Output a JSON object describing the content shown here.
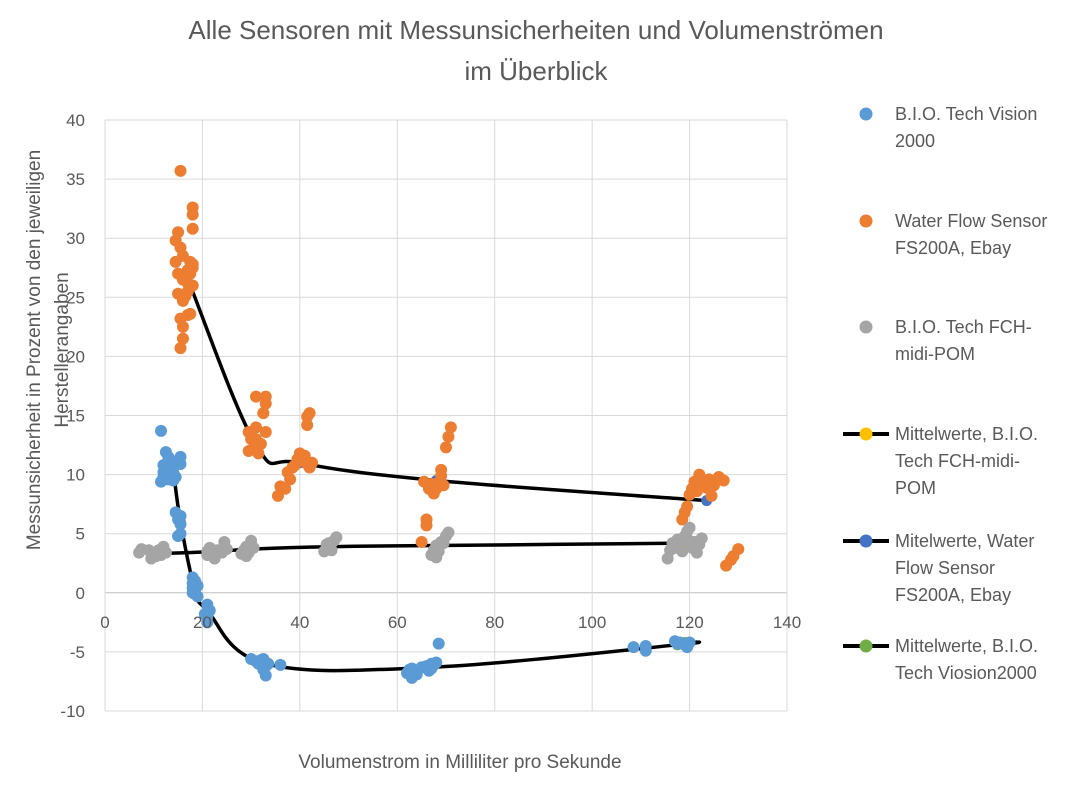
{
  "chart_data": {
    "type": "scatter",
    "title": [
      "Alle Sensoren mit Messunsicherheiten und Volumenströmen",
      "im Überblick"
    ],
    "xlabel": "Volumenstrom in Milliliter pro Sekunde",
    "ylabel": [
      "Messunsicherheit in Prozent von den jeweiligen",
      "Herstellerangaben"
    ],
    "xlim": [
      0,
      140
    ],
    "ylim": [
      -10,
      40
    ],
    "x_ticks": [
      0,
      20,
      40,
      60,
      80,
      100,
      120,
      140
    ],
    "y_ticks": [
      -10,
      -5,
      0,
      5,
      10,
      15,
      20,
      25,
      30,
      35,
      40
    ],
    "grid": true,
    "legend_position": "right",
    "series": [
      {
        "name": [
          "B.I.O. Tech Vision",
          "2000"
        ],
        "kind": "points",
        "color": "#5B9BD5",
        "points": [
          [
            11.5,
            13.7
          ],
          [
            12,
            10.8
          ],
          [
            12.5,
            11.9
          ],
          [
            12,
            10.2
          ],
          [
            11.5,
            9.4
          ],
          [
            12.5,
            10
          ],
          [
            13,
            11.5
          ],
          [
            13.5,
            10.5
          ],
          [
            14,
            11
          ],
          [
            14,
            9.5
          ],
          [
            14.5,
            9.8
          ],
          [
            15,
            11.2
          ],
          [
            15.5,
            10.9
          ],
          [
            15.5,
            11.5
          ],
          [
            14,
            10.2
          ],
          [
            13,
            9.6
          ],
          [
            12,
            9.8
          ],
          [
            12.5,
            10.6
          ],
          [
            14.5,
            6.8
          ],
          [
            15,
            6.2
          ],
          [
            15.5,
            5.8
          ],
          [
            15.5,
            5
          ],
          [
            15,
            4.8
          ],
          [
            15.5,
            6.5
          ],
          [
            18,
            1.3
          ],
          [
            18,
            0.8
          ],
          [
            18.5,
            0.3
          ],
          [
            18,
            0
          ],
          [
            18.5,
            1
          ],
          [
            19,
            -0.3
          ],
          [
            18.5,
            -0.1
          ],
          [
            19,
            0.6
          ],
          [
            18,
            0.4
          ],
          [
            21,
            -1
          ],
          [
            21.5,
            -1.5
          ],
          [
            21,
            -2
          ],
          [
            21,
            -2.5
          ],
          [
            20.5,
            -1.8
          ],
          [
            30,
            -5.6
          ],
          [
            31,
            -5.8
          ],
          [
            32,
            -5.7
          ],
          [
            33,
            -6.2
          ],
          [
            32.5,
            -6.5
          ],
          [
            33,
            -7
          ],
          [
            31.5,
            -6
          ],
          [
            32.5,
            -5.6
          ],
          [
            36,
            -6.1
          ],
          [
            33.5,
            -6
          ],
          [
            62,
            -6.8
          ],
          [
            62.5,
            -6.5
          ],
          [
            63,
            -7.2
          ],
          [
            63,
            -6.4
          ],
          [
            64,
            -6.9
          ],
          [
            65,
            -6.3
          ],
          [
            66,
            -6.2
          ],
          [
            66.5,
            -6.6
          ],
          [
            67,
            -6.4
          ],
          [
            67.5,
            -6.1
          ],
          [
            68,
            -5.9
          ],
          [
            68.5,
            -4.3
          ],
          [
            67,
            -6
          ],
          [
            108.5,
            -4.6
          ],
          [
            111,
            -4.5
          ],
          [
            111,
            -4.9
          ],
          [
            117,
            -4.1
          ],
          [
            117.5,
            -4.3
          ],
          [
            119,
            -4.4
          ],
          [
            120,
            -4.2
          ],
          [
            119.5,
            -4.6
          ],
          [
            118,
            -4.2
          ]
        ]
      },
      {
        "name": [
          "Water Flow Sensor",
          "FS200A, Ebay"
        ],
        "kind": "points",
        "color": "#ED7D31",
        "points": [
          [
            15.5,
            35.7
          ],
          [
            18,
            32.6
          ],
          [
            18,
            32
          ],
          [
            18,
            30.8
          ],
          [
            15,
            30.5
          ],
          [
            14.5,
            29.8
          ],
          [
            15.5,
            29.2
          ],
          [
            16,
            28.5
          ],
          [
            14.5,
            28
          ],
          [
            17.5,
            28
          ],
          [
            18,
            27.8
          ],
          [
            17,
            27.3
          ],
          [
            18,
            27.5
          ],
          [
            15,
            27
          ],
          [
            16,
            26.5
          ],
          [
            17,
            26.2
          ],
          [
            18,
            26
          ],
          [
            17,
            25.5
          ],
          [
            15,
            25.3
          ],
          [
            16.5,
            25.1
          ],
          [
            16,
            24.7
          ],
          [
            15.5,
            23.2
          ],
          [
            16,
            22.5
          ],
          [
            16,
            21.5
          ],
          [
            15.5,
            20.7
          ],
          [
            17.5,
            23.6
          ],
          [
            17,
            23.5
          ],
          [
            17.5,
            27
          ],
          [
            31,
            16.6
          ],
          [
            33,
            16.6
          ],
          [
            32.5,
            15.2
          ],
          [
            33,
            16
          ],
          [
            29.5,
            13.6
          ],
          [
            30,
            13
          ],
          [
            31,
            13
          ],
          [
            32,
            12.6
          ],
          [
            30.5,
            12.2
          ],
          [
            29.5,
            12
          ],
          [
            31,
            14
          ],
          [
            33,
            13.6
          ],
          [
            31.5,
            11.8
          ],
          [
            35.5,
            8.2
          ],
          [
            36,
            9
          ],
          [
            37,
            8.8
          ],
          [
            37.5,
            10.2
          ],
          [
            38,
            9.6
          ],
          [
            38.5,
            10.6
          ],
          [
            39,
            10.8
          ],
          [
            39.5,
            11.3
          ],
          [
            40,
            11.8
          ],
          [
            40.5,
            11.2
          ],
          [
            41,
            11.6
          ],
          [
            41.5,
            10.9
          ],
          [
            42,
            10.6
          ],
          [
            42.5,
            11
          ],
          [
            41.5,
            14.2
          ],
          [
            41.5,
            14.9
          ],
          [
            42,
            15.2
          ],
          [
            65,
            4.3
          ],
          [
            66,
            5.7
          ],
          [
            66,
            6.2
          ],
          [
            66.5,
            8.8
          ],
          [
            67,
            9.2
          ],
          [
            67.5,
            8.4
          ],
          [
            68,
            8.8
          ],
          [
            68.5,
            9.3
          ],
          [
            69,
            9.9
          ],
          [
            69,
            10.4
          ],
          [
            69.5,
            9.1
          ],
          [
            70,
            12.3
          ],
          [
            70.5,
            13.2
          ],
          [
            71,
            14
          ],
          [
            65.5,
            9.4
          ],
          [
            118.5,
            6.2
          ],
          [
            119,
            6.8
          ],
          [
            119.5,
            7.3
          ],
          [
            120,
            8.3
          ],
          [
            120.5,
            8.8
          ],
          [
            121,
            9.4
          ],
          [
            121.5,
            8.6
          ],
          [
            122,
            10
          ],
          [
            122.5,
            9.5
          ],
          [
            123,
            9.1
          ],
          [
            123.5,
            8.9
          ],
          [
            124,
            9.6
          ],
          [
            125,
            9.1
          ],
          [
            126,
            9.8
          ],
          [
            127,
            9.5
          ],
          [
            127.5,
            2.3
          ],
          [
            128.5,
            2.8
          ],
          [
            129,
            3.1
          ],
          [
            130,
            3.7
          ],
          [
            124.5,
            8.2
          ]
        ]
      },
      {
        "name": [
          "B.I.O. Tech FCH-",
          "midi-POM"
        ],
        "kind": "points",
        "color": "#A5A5A5",
        "points": [
          [
            7,
            3.4
          ],
          [
            7.5,
            3.7
          ],
          [
            9,
            3.6
          ],
          [
            9.5,
            2.9
          ],
          [
            10,
            3.3
          ],
          [
            10.5,
            3.1
          ],
          [
            11,
            3.6
          ],
          [
            11.5,
            3.2
          ],
          [
            12,
            3.9
          ],
          [
            12.5,
            3.4
          ],
          [
            10,
            3.2
          ],
          [
            21,
            3.2
          ],
          [
            21.5,
            3.8
          ],
          [
            22,
            3.5
          ],
          [
            22.5,
            2.9
          ],
          [
            23,
            3.6
          ],
          [
            24,
            3.4
          ],
          [
            24.5,
            4.3
          ],
          [
            25,
            3.7
          ],
          [
            21,
            3.5
          ],
          [
            28,
            3.3
          ],
          [
            28.5,
            3.6
          ],
          [
            29,
            3.9
          ],
          [
            29.5,
            3.4
          ],
          [
            30,
            4.4
          ],
          [
            30.5,
            3.8
          ],
          [
            29,
            3.1
          ],
          [
            45,
            3.5
          ],
          [
            45.5,
            4.1
          ],
          [
            46,
            3.8
          ],
          [
            46.5,
            3.6
          ],
          [
            47,
            4.4
          ],
          [
            47.5,
            4.7
          ],
          [
            46,
            4.2
          ],
          [
            67,
            3.2
          ],
          [
            67.5,
            3.6
          ],
          [
            68,
            4
          ],
          [
            68.5,
            3.5
          ],
          [
            69,
            4.3
          ],
          [
            69.5,
            4.2
          ],
          [
            70,
            4.8
          ],
          [
            70.5,
            5.1
          ],
          [
            68,
            3
          ],
          [
            115.5,
            2.9
          ],
          [
            116,
            3.6
          ],
          [
            116.5,
            4.2
          ],
          [
            117,
            3.8
          ],
          [
            117.5,
            4.5
          ],
          [
            118,
            4.1
          ],
          [
            118.5,
            3.5
          ],
          [
            119,
            4.8
          ],
          [
            119.5,
            5.2
          ],
          [
            120,
            5.5
          ],
          [
            120.5,
            3.8
          ],
          [
            121,
            4.3
          ],
          [
            121.5,
            3.4
          ],
          [
            122,
            4.1
          ],
          [
            122.5,
            4.6
          ],
          [
            120,
            4.4
          ]
        ]
      },
      {
        "name": [
          "Mittelwerte, B.I.O.",
          "Tech FCH-midi-",
          "POM"
        ],
        "kind": "line",
        "color": "#000000",
        "marker_color": "#FFC000",
        "points": [
          [
            10,
            3.3
          ],
          [
            23,
            3.5
          ],
          [
            30,
            3.7
          ],
          [
            46,
            3.9
          ],
          [
            68,
            4
          ],
          [
            119,
            4.2
          ]
        ]
      },
      {
        "name": [
          "Mitelwerte, Water",
          "Flow Sensor",
          "FS200A, Ebay"
        ],
        "kind": "line",
        "color": "#000000",
        "marker_color": "#4472C4",
        "points": [
          [
            17.5,
            26
          ],
          [
            31,
            12.5
          ],
          [
            40,
            11
          ],
          [
            68,
            9.5
          ],
          [
            123.5,
            7.8
          ]
        ]
      },
      {
        "name": [
          "Mittelwerte, B.I.O.",
          "Tech Viosion2000"
        ],
        "kind": "line",
        "color": "#000000",
        "marker_color": "#70AD47",
        "points": [
          [
            14,
            10.5
          ],
          [
            15.5,
            6
          ],
          [
            18.5,
            0.2
          ],
          [
            21,
            -1.5
          ],
          [
            33,
            -6
          ],
          [
            67,
            -6.3
          ],
          [
            117.5,
            -4.4
          ],
          [
            119,
            -4.2
          ]
        ]
      }
    ]
  }
}
